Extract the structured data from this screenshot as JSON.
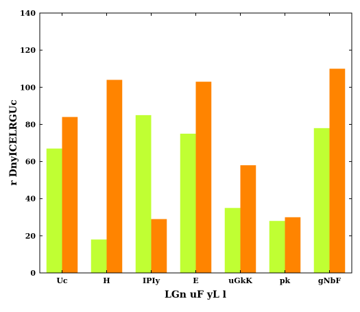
{
  "chart_data": {
    "type": "bar",
    "title": "",
    "xlabel": "LGn   uF yL l",
    "ylabel": "r DnyICELRGUc",
    "categories": [
      "Uc",
      "H",
      "IPIy",
      "E",
      "uGkK",
      "pk",
      "gNbF"
    ],
    "series": [
      {
        "color": "#c0ff33",
        "values": [
          67,
          18,
          85,
          75,
          35,
          28,
          78
        ]
      },
      {
        "color": "#ff8400",
        "values": [
          84,
          104,
          29,
          103,
          58,
          30,
          110
        ]
      }
    ],
    "ylim": [
      0,
      140
    ],
    "yticks": [
      0,
      20,
      40,
      60,
      80,
      100,
      120,
      140
    ],
    "grid": false,
    "legend": "none"
  }
}
